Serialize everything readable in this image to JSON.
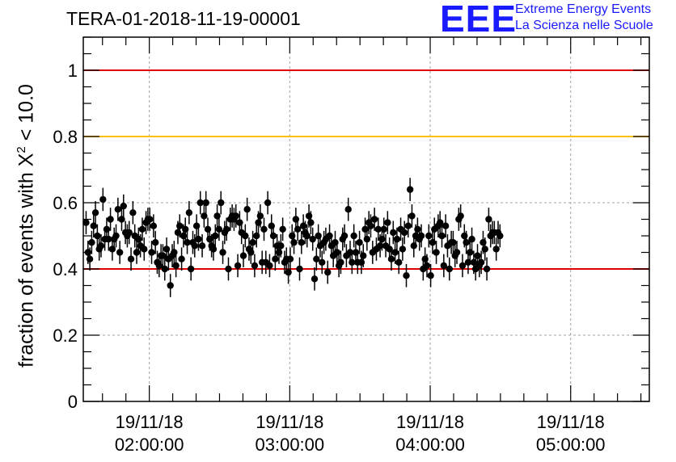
{
  "header": {
    "title": "TERA-01-2018-11-19-00001",
    "logo_mark": "EEE",
    "logo_line1": "Extreme Energy Events",
    "logo_line2": "La Scienza nelle Scuole"
  },
  "chart_data": {
    "type": "scatter",
    "title": "TERA-01-2018-11-19-00001",
    "ylabel_prefix": "fraction of events with",
    "ylabel_chi": "X",
    "ylabel_sup": "2",
    "ylabel_suffix": "< 10.0",
    "ylim": [
      0,
      1.1
    ],
    "xlim_hours": [
      1.53,
      5.56
    ],
    "yticks": [
      "0",
      "0.2",
      "0.4",
      "0.6",
      "0.8",
      "1"
    ],
    "xticks": [
      {
        "date": "19/11/18",
        "time": "02:00:00"
      },
      {
        "date": "19/11/18",
        "time": "03:00:00"
      },
      {
        "date": "19/11/18",
        "time": "04:00:00"
      },
      {
        "date": "19/11/18",
        "time": "05:00:00"
      }
    ],
    "grid": true,
    "reference_lines": [
      {
        "y": 1.0,
        "color": "#e00000"
      },
      {
        "y": 0.8,
        "color": "#ffc000"
      },
      {
        "y": 0.4,
        "color": "#e00000"
      }
    ],
    "error_bar": 0.035,
    "series": [
      {
        "marker_color": "#000000",
        "x_start_time": "01:33:00",
        "x_step_minutes": 0.8,
        "y": [
          0.54,
          0.45,
          0.43,
          0.48,
          0.53,
          0.57,
          0.5,
          0.46,
          0.47,
          0.61,
          0.49,
          0.52,
          0.49,
          0.55,
          0.46,
          0.49,
          0.5,
          0.58,
          0.45,
          0.55,
          0.59,
          0.51,
          0.5,
          0.51,
          0.43,
          0.57,
          0.5,
          0.45,
          0.49,
          0.47,
          0.52,
          0.46,
          0.54,
          0.55,
          0.55,
          0.45,
          0.53,
          0.48,
          0.42,
          0.41,
          0.44,
          0.44,
          0.4,
          0.46,
          0.43,
          0.35,
          0.44,
          0.45,
          0.41,
          0.51,
          0.53,
          0.43,
          0.5,
          0.52,
          0.48,
          0.57,
          0.4,
          0.48,
          0.47,
          0.53,
          0.49,
          0.6,
          0.47,
          0.56,
          0.6,
          0.52,
          0.49,
          0.47,
          0.46,
          0.5,
          0.56,
          0.52,
          0.6,
          0.45,
          0.51,
          0.52,
          0.4,
          0.55,
          0.56,
          0.55,
          0.56,
          0.41,
          0.54,
          0.51,
          0.44,
          0.5,
          0.58,
          0.46,
          0.45,
          0.48,
          0.41,
          0.5,
          0.54,
          0.56,
          0.42,
          0.52,
          0.42,
          0.6,
          0.41,
          0.53,
          0.5,
          0.43,
          0.47,
          0.45,
          0.47,
          0.52,
          0.42,
          0.43,
          0.39,
          0.43,
          0.5,
          0.48,
          0.55,
          0.52,
          0.4,
          0.48,
          0.53,
          0.51,
          0.5,
          0.56,
          0.54,
          0.49,
          0.37,
          0.43,
          0.5,
          0.47,
          0.42,
          0.48,
          0.49,
          0.39,
          0.5,
          0.47,
          0.44,
          0.48,
          0.45,
          0.41,
          0.42,
          0.49,
          0.5,
          0.44,
          0.58,
          0.45,
          0.42,
          0.5,
          0.45,
          0.42,
          0.48,
          0.42,
          0.44,
          0.52,
          0.49,
          0.54,
          0.53,
          0.45,
          0.55,
          0.46,
          0.52,
          0.47,
          0.49,
          0.52,
          0.47,
          0.54,
          0.46,
          0.43,
          0.51,
          0.45,
          0.49,
          0.42,
          0.52,
          0.46,
          0.51,
          0.38,
          0.53,
          0.64,
          0.56,
          0.47,
          0.5,
          0.52,
          0.49,
          0.5,
          0.4,
          0.43,
          0.41,
          0.5,
          0.38,
          0.48,
          0.52,
          0.45,
          0.53,
          0.54,
          0.5,
          0.41,
          0.53,
          0.47,
          0.4,
          0.48,
          0.48,
          0.44,
          0.45,
          0.55,
          0.56,
          0.41,
          0.5,
          0.48,
          0.42,
          0.45,
          0.49,
          0.42,
          0.4,
          0.44,
          0.41,
          0.42,
          0.48,
          0.46,
          0.4,
          0.55,
          0.5,
          0.51,
          0.51,
          0.46,
          0.51,
          0.5
        ]
      }
    ]
  },
  "colors": {
    "axis": "#000000",
    "grid": "#a0a0a0",
    "logo": "#1a1aff"
  }
}
